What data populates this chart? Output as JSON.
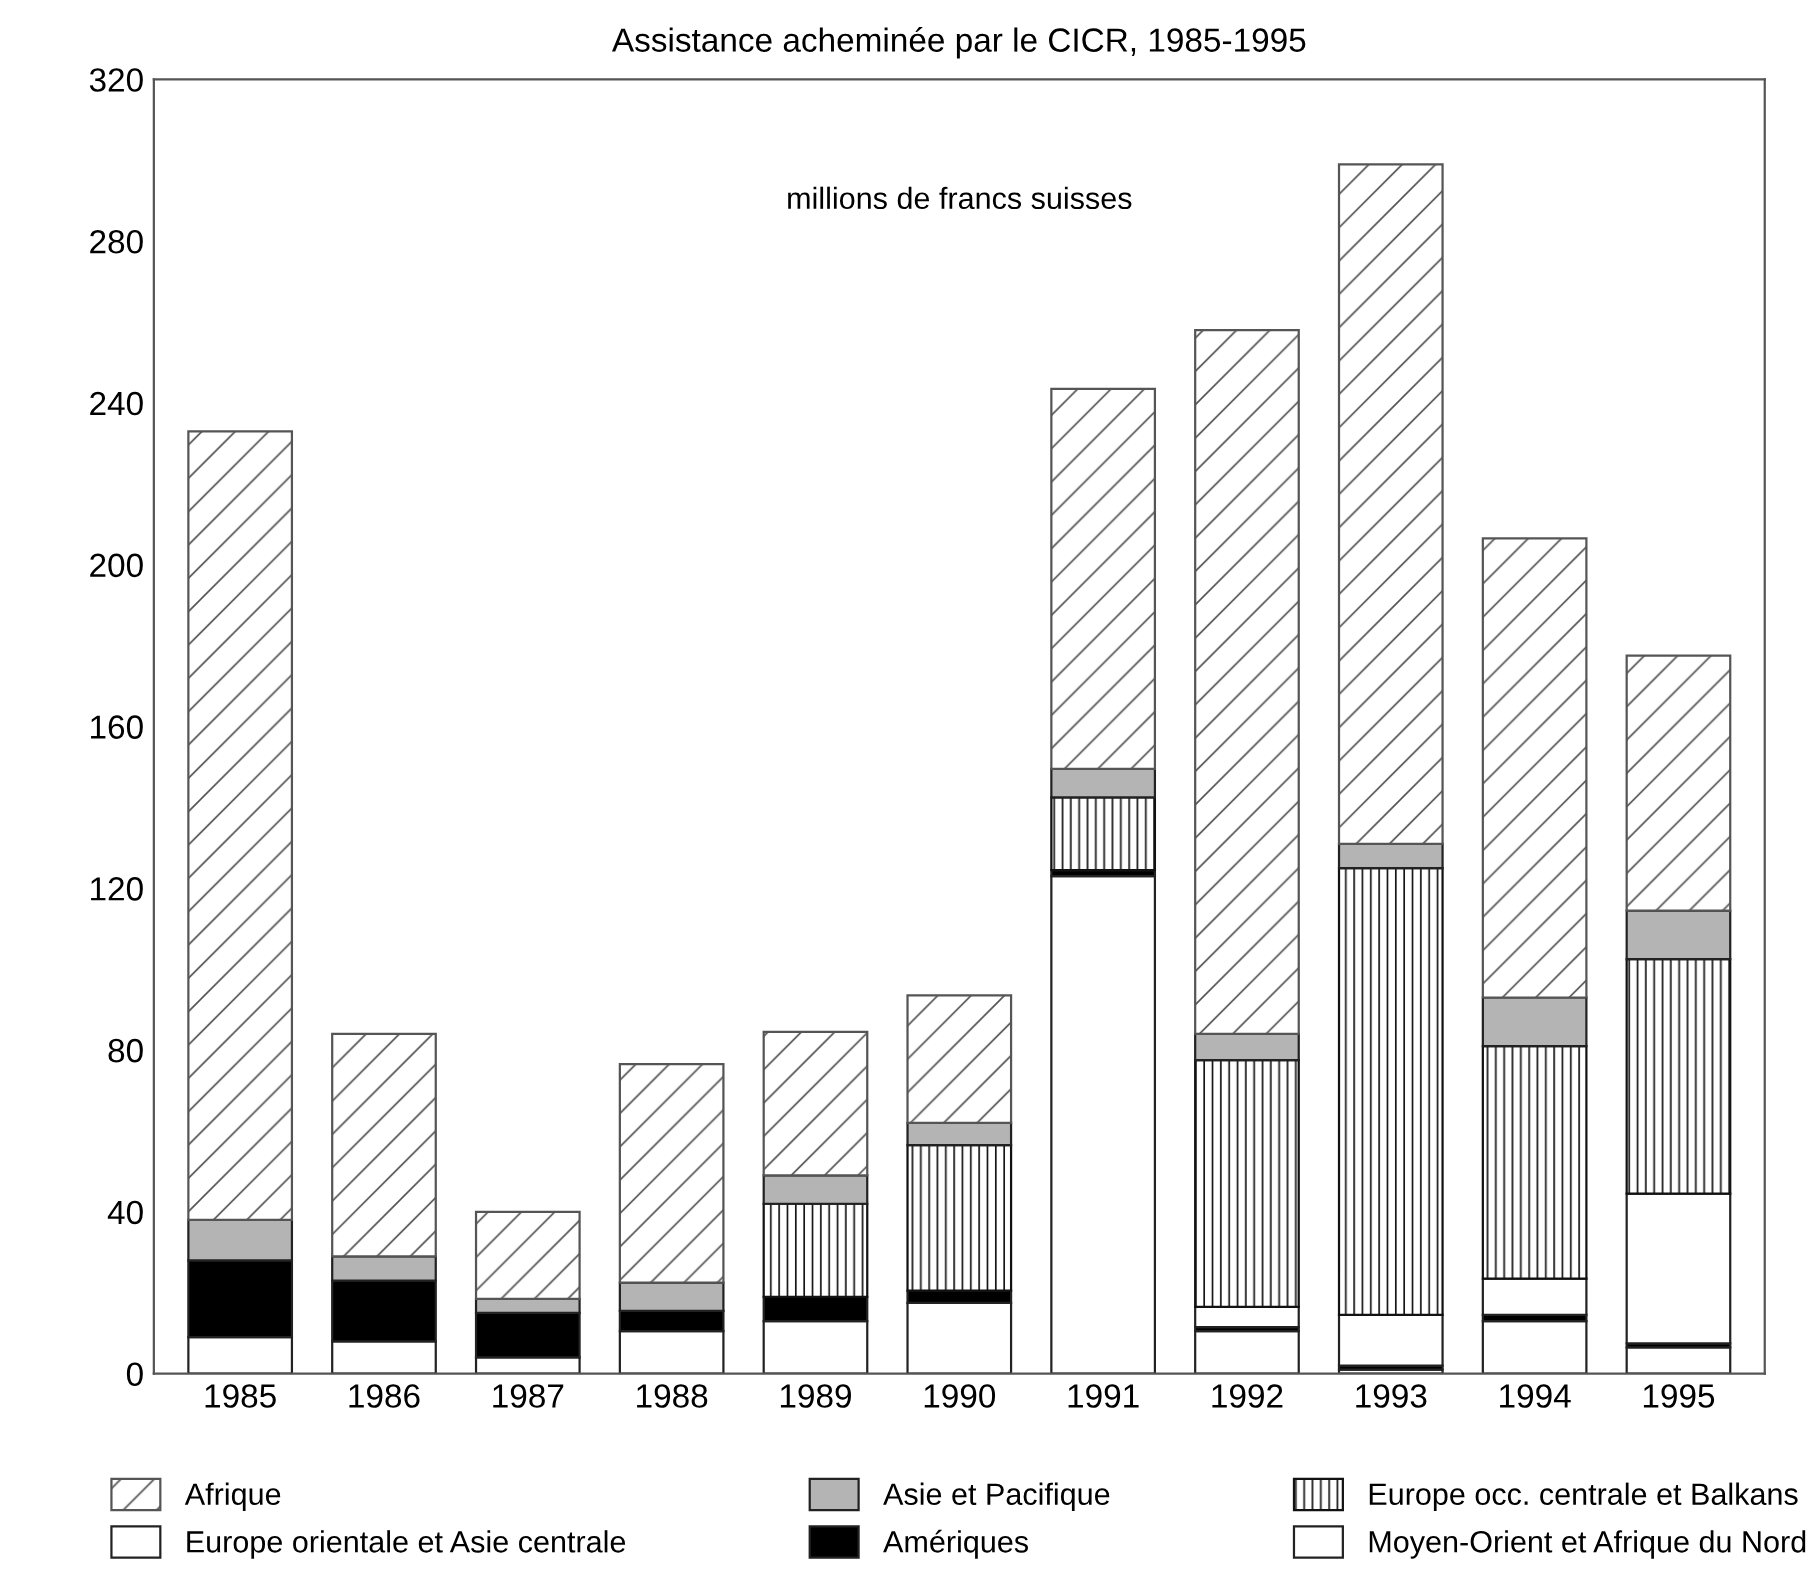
{
  "chart_data": {
    "type": "bar",
    "title": "Assistance acheminée par le CICR, 1985-1995",
    "stacked": true,
    "categories": [
      "1985",
      "1986",
      "1987",
      "1988",
      "1989",
      "1990",
      "1991",
      "1992",
      "1993",
      "1994",
      "1995"
    ],
    "series": [
      {
        "name": "Moyen-Orient et Afrique du Nord",
        "color": "#ffffff",
        "values": [
          9,
          8,
          4,
          10.5,
          13,
          17.5,
          123,
          10.5,
          1,
          13,
          6.5
        ]
      },
      {
        "name": "Amériques",
        "color": "#000000",
        "values": [
          19,
          15,
          11,
          5,
          6,
          3,
          1.5,
          1,
          1,
          1.5,
          1
        ]
      },
      {
        "name": "Europe orientale et Asie centrale",
        "color": "#ffffff",
        "values": [
          null,
          null,
          null,
          null,
          null,
          null,
          null,
          5,
          12.5,
          9,
          37
        ]
      },
      {
        "name": "Europe occ. centrale et Balkans",
        "color": "#111111",
        "values": [
          null,
          null,
          null,
          null,
          23,
          36,
          18,
          61,
          110.5,
          57.5,
          58
        ]
      },
      {
        "name": "Asie et Pacifique",
        "color": "#b4b4b4",
        "values": [
          10,
          6,
          3.5,
          7,
          7,
          5.5,
          7,
          6.5,
          6,
          12,
          12
        ]
      },
      {
        "name": "Afrique",
        "color": "#555555",
        "values": [
          195,
          55,
          21.5,
          54,
          35.5,
          31.5,
          94,
          174,
          168,
          113.5,
          63
        ]
      }
    ],
    "ylim": [
      0,
      320
    ],
    "yticks": [
      0,
      40,
      80,
      120,
      160,
      200,
      240,
      280,
      320
    ],
    "grid": false,
    "legend": "bottom",
    "annotations": [
      "millions de francs suisses"
    ]
  }
}
